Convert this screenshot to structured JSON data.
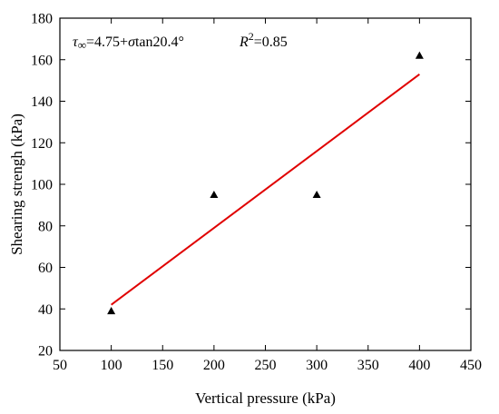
{
  "chart_data": {
    "type": "scatter",
    "xlabel": "Vertical pressure (kPa)",
    "ylabel": "Shearing strengh (kPa)",
    "xlim": [
      50,
      450
    ],
    "ylim": [
      20,
      180
    ],
    "xticks": [
      50,
      100,
      150,
      200,
      250,
      300,
      350,
      400,
      450
    ],
    "yticks": [
      20,
      40,
      60,
      80,
      100,
      120,
      140,
      160,
      180
    ],
    "grid": false,
    "series": [
      {
        "marker": "triangle",
        "color": "#000000",
        "points": [
          {
            "x": 100,
            "y": 39
          },
          {
            "x": 200,
            "y": 95
          },
          {
            "x": 300,
            "y": 95
          },
          {
            "x": 400,
            "y": 162
          }
        ]
      }
    ],
    "fit_line": {
      "color": "#e00000",
      "points": [
        {
          "x": 100,
          "y": 42
        },
        {
          "x": 400,
          "y": 153
        }
      ]
    },
    "annotations": {
      "equation": {
        "tau": "τ",
        "sub": "∞",
        "rest1": "=4.75+",
        "sigma": "σ",
        "rest2": "tan20.4°"
      },
      "r2": {
        "R": "R",
        "sup": "2",
        "val": "=0.85"
      }
    }
  }
}
